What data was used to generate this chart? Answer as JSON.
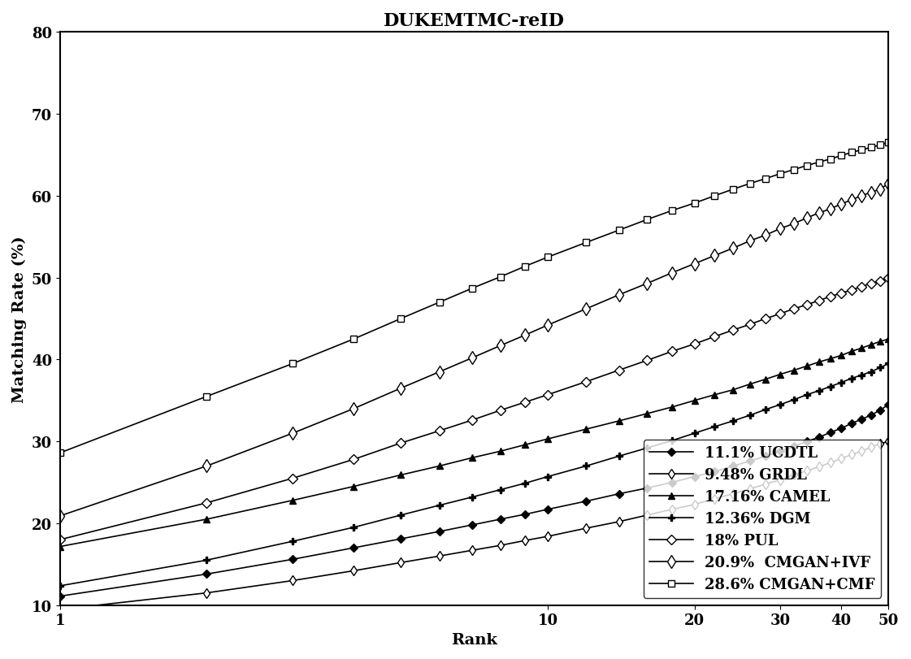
{
  "title": "DUKEMTMC-reID",
  "xlabel": "Rank",
  "ylabel": "Matching Rate (%)",
  "xlim": [
    1,
    50
  ],
  "ylim": [
    10,
    80
  ],
  "xticks": [
    1,
    10,
    20,
    30,
    40,
    50
  ],
  "yticks": [
    10,
    20,
    30,
    40,
    50,
    60,
    70,
    80
  ],
  "series_data": {
    "11.1% UCDTL": {
      "x": [
        1,
        2,
        3,
        4,
        5,
        6,
        7,
        8,
        9,
        10,
        12,
        14,
        16,
        18,
        20,
        22,
        24,
        26,
        28,
        30,
        32,
        34,
        36,
        38,
        40,
        42,
        44,
        46,
        48,
        50
      ],
      "y": [
        11.1,
        13.8,
        15.6,
        17.0,
        18.1,
        19.0,
        19.8,
        20.5,
        21.1,
        21.7,
        22.7,
        23.6,
        24.3,
        25.0,
        25.7,
        26.3,
        27.0,
        27.6,
        28.2,
        28.8,
        29.4,
        30.0,
        30.5,
        31.1,
        31.6,
        32.2,
        32.7,
        33.2,
        33.8,
        34.5
      ],
      "marker": "D",
      "markersize": 5,
      "fillstyle": "full"
    },
    "9.48% GRDL": {
      "x": [
        1,
        2,
        3,
        4,
        5,
        6,
        7,
        8,
        9,
        10,
        12,
        14,
        16,
        18,
        20,
        22,
        24,
        26,
        28,
        30,
        32,
        34,
        36,
        38,
        40,
        42,
        44,
        46,
        48,
        50
      ],
      "y": [
        9.48,
        11.5,
        13.0,
        14.2,
        15.2,
        16.0,
        16.7,
        17.3,
        17.9,
        18.4,
        19.4,
        20.2,
        21.0,
        21.7,
        22.3,
        23.0,
        23.6,
        24.2,
        24.8,
        25.3,
        25.9,
        26.4,
        26.9,
        27.4,
        27.9,
        28.4,
        28.8,
        29.3,
        29.7,
        30.0
      ],
      "marker": "d",
      "markersize": 6,
      "fillstyle": "none"
    },
    "17.16% CAMEL": {
      "x": [
        1,
        2,
        3,
        4,
        5,
        6,
        7,
        8,
        9,
        10,
        12,
        14,
        16,
        18,
        20,
        22,
        24,
        26,
        28,
        30,
        32,
        34,
        36,
        38,
        40,
        42,
        44,
        46,
        48,
        50
      ],
      "y": [
        17.16,
        20.5,
        22.8,
        24.5,
        25.9,
        27.0,
        28.0,
        28.8,
        29.6,
        30.3,
        31.5,
        32.5,
        33.4,
        34.2,
        35.0,
        35.7,
        36.3,
        37.0,
        37.6,
        38.2,
        38.7,
        39.2,
        39.7,
        40.1,
        40.5,
        41.0,
        41.4,
        41.8,
        42.2,
        42.5
      ],
      "marker": "^",
      "markersize": 6,
      "fillstyle": "full"
    },
    "12.36% DGM": {
      "x": [
        1,
        2,
        3,
        4,
        5,
        6,
        7,
        8,
        9,
        10,
        12,
        14,
        16,
        18,
        20,
        22,
        24,
        26,
        28,
        30,
        32,
        34,
        36,
        38,
        40,
        42,
        44,
        46,
        48,
        50
      ],
      "y": [
        12.36,
        15.5,
        17.8,
        19.5,
        21.0,
        22.2,
        23.2,
        24.1,
        24.9,
        25.7,
        27.0,
        28.2,
        29.2,
        30.1,
        31.0,
        31.8,
        32.5,
        33.2,
        33.9,
        34.5,
        35.1,
        35.7,
        36.2,
        36.7,
        37.2,
        37.7,
        38.1,
        38.5,
        39.0,
        39.5
      ],
      "marker": "+",
      "markersize": 8,
      "fillstyle": "full"
    },
    "18% PUL": {
      "x": [
        1,
        2,
        3,
        4,
        5,
        6,
        7,
        8,
        9,
        10,
        12,
        14,
        16,
        18,
        20,
        22,
        24,
        26,
        28,
        30,
        32,
        34,
        36,
        38,
        40,
        42,
        44,
        46,
        48,
        50
      ],
      "y": [
        18.0,
        22.5,
        25.5,
        27.8,
        29.8,
        31.3,
        32.6,
        33.8,
        34.8,
        35.7,
        37.3,
        38.7,
        39.9,
        41.0,
        41.9,
        42.8,
        43.6,
        44.3,
        45.0,
        45.6,
        46.2,
        46.7,
        47.2,
        47.7,
        48.1,
        48.5,
        48.9,
        49.3,
        49.6,
        50.0
      ],
      "marker": "D",
      "markersize": 6,
      "fillstyle": "none"
    },
    "20.9% CMGAN+IVF": {
      "x": [
        1,
        2,
        3,
        4,
        5,
        6,
        7,
        8,
        9,
        10,
        12,
        14,
        16,
        18,
        20,
        22,
        24,
        26,
        28,
        30,
        32,
        34,
        36,
        38,
        40,
        42,
        44,
        46,
        48,
        50
      ],
      "y": [
        20.9,
        27.0,
        31.0,
        34.0,
        36.5,
        38.5,
        40.2,
        41.7,
        43.0,
        44.2,
        46.2,
        47.9,
        49.3,
        50.6,
        51.7,
        52.7,
        53.6,
        54.5,
        55.2,
        56.0,
        56.6,
        57.3,
        57.9,
        58.4,
        59.0,
        59.5,
        60.0,
        60.4,
        60.8,
        61.5
      ],
      "marker": "d",
      "markersize": 8,
      "fillstyle": "none"
    },
    "28.6% CMGAN+CMF": {
      "x": [
        1,
        2,
        3,
        4,
        5,
        6,
        7,
        8,
        9,
        10,
        12,
        14,
        16,
        18,
        20,
        22,
        24,
        26,
        28,
        30,
        32,
        34,
        36,
        38,
        40,
        42,
        44,
        46,
        48,
        50
      ],
      "y": [
        28.6,
        35.5,
        39.5,
        42.5,
        45.0,
        47.0,
        48.7,
        50.1,
        51.4,
        52.5,
        54.3,
        55.8,
        57.1,
        58.2,
        59.1,
        60.0,
        60.8,
        61.5,
        62.1,
        62.7,
        63.2,
        63.7,
        64.1,
        64.5,
        64.9,
        65.3,
        65.6,
        65.9,
        66.2,
        66.5
      ],
      "marker": "s",
      "markersize": 6,
      "fillstyle": "none"
    }
  },
  "series_order": [
    "11.1% UCDTL",
    "9.48% GRDL",
    "17.16% CAMEL",
    "12.36% DGM",
    "18% PUL",
    "20.9% CMGAN+IVF",
    "28.6% CMGAN+CMF"
  ],
  "legend_labels": [
    "11.1% UCDTL",
    "9.48% GRDL",
    "17.16% CAMEL",
    "12.36% DGM",
    "18% PUL",
    "20.9%  CMGAN+IVF",
    "28.6% CMGAN+CMF"
  ],
  "background_color": "#ffffff",
  "title_fontsize": 16,
  "label_fontsize": 14,
  "tick_fontsize": 13,
  "legend_fontsize": 12,
  "linewidth": 1.2,
  "color": "#000000"
}
